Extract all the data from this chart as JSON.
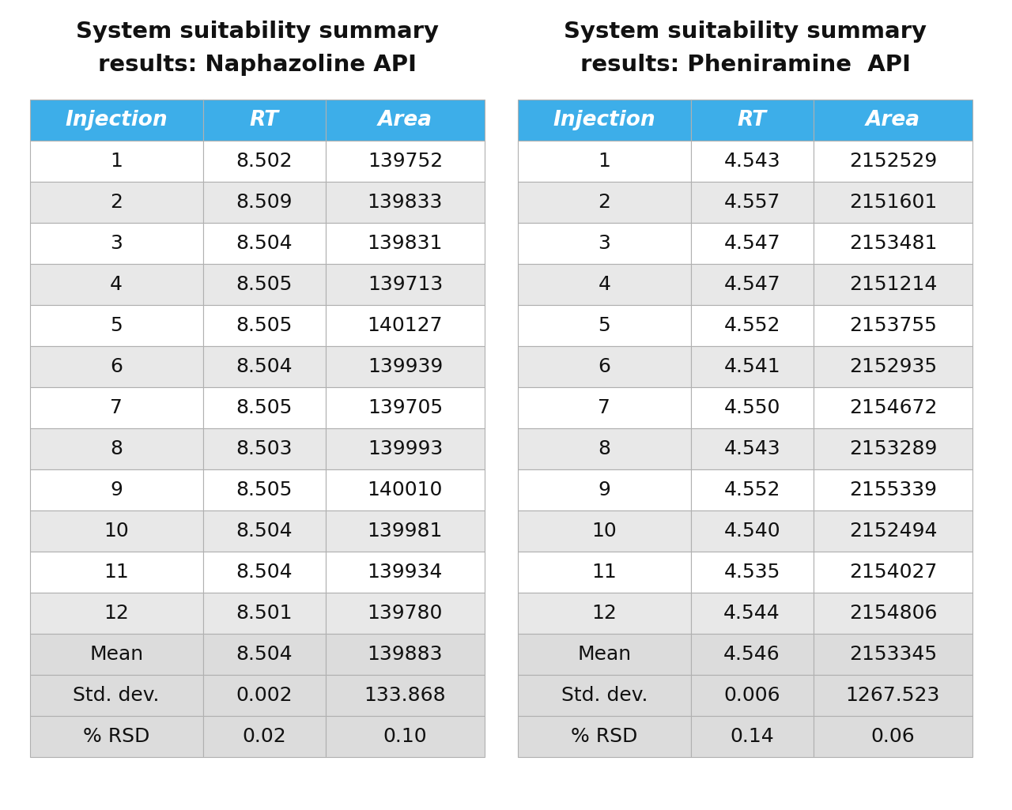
{
  "title1_line1": "System suitability summary",
  "title1_line2": "results: Naphazoline API",
  "title2_line1": "System suitability summary",
  "title2_line2": "results: Pheniramine  API",
  "headers": [
    "Injection",
    "RT",
    "Area"
  ],
  "naph_data": [
    [
      "1",
      "8.502",
      "139752"
    ],
    [
      "2",
      "8.509",
      "139833"
    ],
    [
      "3",
      "8.504",
      "139831"
    ],
    [
      "4",
      "8.505",
      "139713"
    ],
    [
      "5",
      "8.505",
      "140127"
    ],
    [
      "6",
      "8.504",
      "139939"
    ],
    [
      "7",
      "8.505",
      "139705"
    ],
    [
      "8",
      "8.503",
      "139993"
    ],
    [
      "9",
      "8.505",
      "140010"
    ],
    [
      "10",
      "8.504",
      "139981"
    ],
    [
      "11",
      "8.504",
      "139934"
    ],
    [
      "12",
      "8.501",
      "139780"
    ],
    [
      "Mean",
      "8.504",
      "139883"
    ],
    [
      "Std. dev.",
      "0.002",
      "133.868"
    ],
    [
      "% RSD",
      "0.02",
      "0.10"
    ]
  ],
  "phen_data": [
    [
      "1",
      "4.543",
      "2152529"
    ],
    [
      "2",
      "4.557",
      "2151601"
    ],
    [
      "3",
      "4.547",
      "2153481"
    ],
    [
      "4",
      "4.547",
      "2151214"
    ],
    [
      "5",
      "4.552",
      "2153755"
    ],
    [
      "6",
      "4.541",
      "2152935"
    ],
    [
      "7",
      "4.550",
      "2154672"
    ],
    [
      "8",
      "4.543",
      "2153289"
    ],
    [
      "9",
      "4.552",
      "2155339"
    ],
    [
      "10",
      "4.540",
      "2152494"
    ],
    [
      "11",
      "4.535",
      "2154027"
    ],
    [
      "12",
      "4.544",
      "2154806"
    ],
    [
      "Mean",
      "4.546",
      "2153345"
    ],
    [
      "Std. dev.",
      "0.006",
      "1267.523"
    ],
    [
      "% RSD",
      "0.14",
      "0.06"
    ]
  ],
  "header_bg": "#3daee9",
  "header_text": "#FFFFFF",
  "row_bg_even": "#e8e8e8",
  "row_bg_odd": "#f5f5f5",
  "summary_bg": "#dcdcdc",
  "border_color": "#b0b0b0",
  "text_color": "#111111",
  "bg_color": "#FFFFFF",
  "title_fontsize": 21,
  "header_fontsize": 19,
  "cell_fontsize": 18
}
